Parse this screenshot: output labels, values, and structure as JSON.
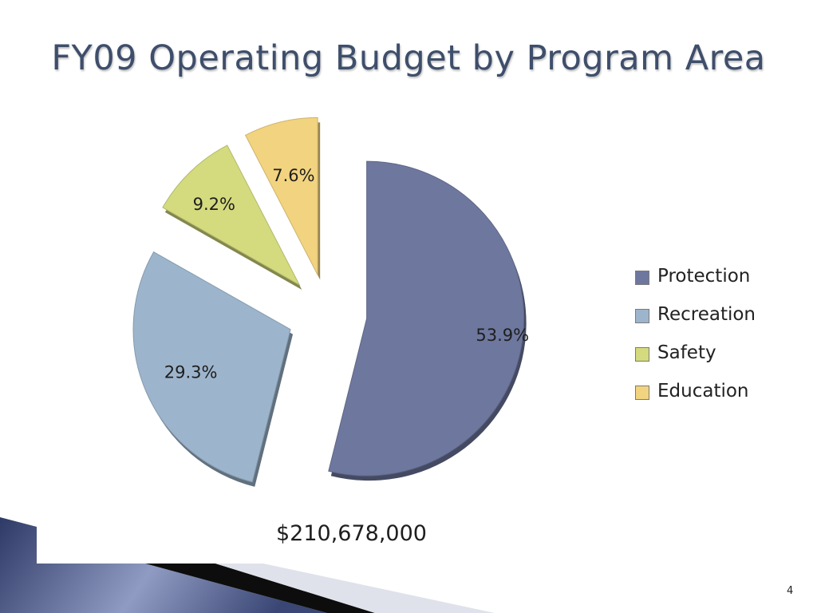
{
  "slide": {
    "title": "FY09 Operating Budget by Program Area",
    "total": "$210,678,000",
    "page_number": "4"
  },
  "chart_data": {
    "type": "pie",
    "title": "FY09 Operating Budget by Program Area",
    "legend_placement": "right",
    "exploded": true,
    "categories": [
      "Protection",
      "Recreation",
      "Safety",
      "Education"
    ],
    "values": [
      53.9,
      29.3,
      9.2,
      7.6
    ],
    "data_labels": [
      "53.9%",
      "29.3%",
      "9.2%",
      "7.6%"
    ],
    "colors": [
      "#6e789e",
      "#9db5cc",
      "#d4da7e",
      "#f2d37f"
    ]
  },
  "legend": [
    {
      "label": "Protection",
      "color": "#6e789e"
    },
    {
      "label": "Recreation",
      "color": "#9db5cc"
    },
    {
      "label": "Safety",
      "color": "#d4da7e"
    },
    {
      "label": "Education",
      "color": "#f2d37f"
    }
  ],
  "theme": {
    "title_color": "#3e4e6b",
    "band_dark": "#2e3a66",
    "band_light": "#8f9bc2"
  }
}
